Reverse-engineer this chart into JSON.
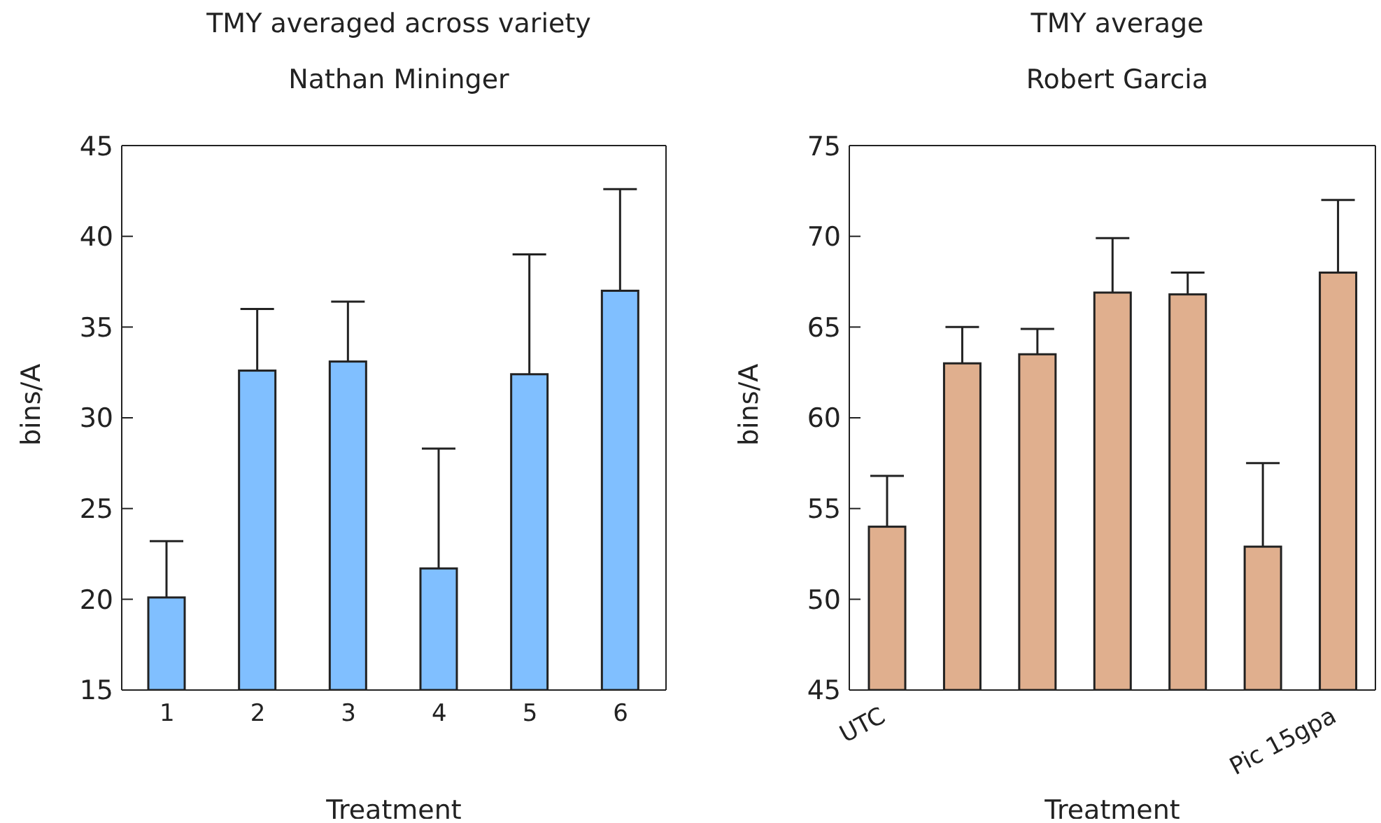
{
  "chart_data": [
    {
      "type": "bar",
      "title": "TMY averaged across variety",
      "subtitle": "Nathan Mininger",
      "xlabel": "Treatment",
      "ylabel": "bins/A",
      "categories": [
        "1",
        "2",
        "3",
        "4",
        "5",
        "6"
      ],
      "values": [
        20.1,
        32.6,
        33.1,
        21.7,
        32.4,
        37.0
      ],
      "errors": [
        [
          20.1,
          23.2
        ],
        [
          32.6,
          36.0
        ],
        [
          33.1,
          36.4
        ],
        [
          21.7,
          28.3
        ],
        [
          32.4,
          39.0
        ],
        [
          37.0,
          42.6
        ]
      ],
      "color": "#80bfff",
      "ylim": [
        15,
        45
      ],
      "yticks": [
        15,
        20,
        25,
        30,
        35,
        40,
        45
      ]
    },
    {
      "type": "bar",
      "title": "TMY average",
      "subtitle": "Robert Garcia",
      "xlabel": "Treatment",
      "ylabel": "bins/A",
      "categories": [
        "UTC",
        null,
        null,
        null,
        null,
        null,
        "Pic 15gpa"
      ],
      "values": [
        54.0,
        63.0,
        63.5,
        66.9,
        66.8,
        52.9,
        68.0
      ],
      "errors": [
        [
          54.0,
          56.8
        ],
        [
          63.0,
          65.0
        ],
        [
          63.5,
          64.9
        ],
        [
          66.9,
          69.9
        ],
        [
          66.8,
          68.0
        ],
        [
          52.9,
          57.5
        ],
        [
          68.0,
          72.0
        ]
      ],
      "color": "#e0af8e",
      "ylim": [
        45,
        75
      ],
      "yticks": [
        45,
        50,
        55,
        60,
        65,
        70,
        75
      ]
    }
  ]
}
